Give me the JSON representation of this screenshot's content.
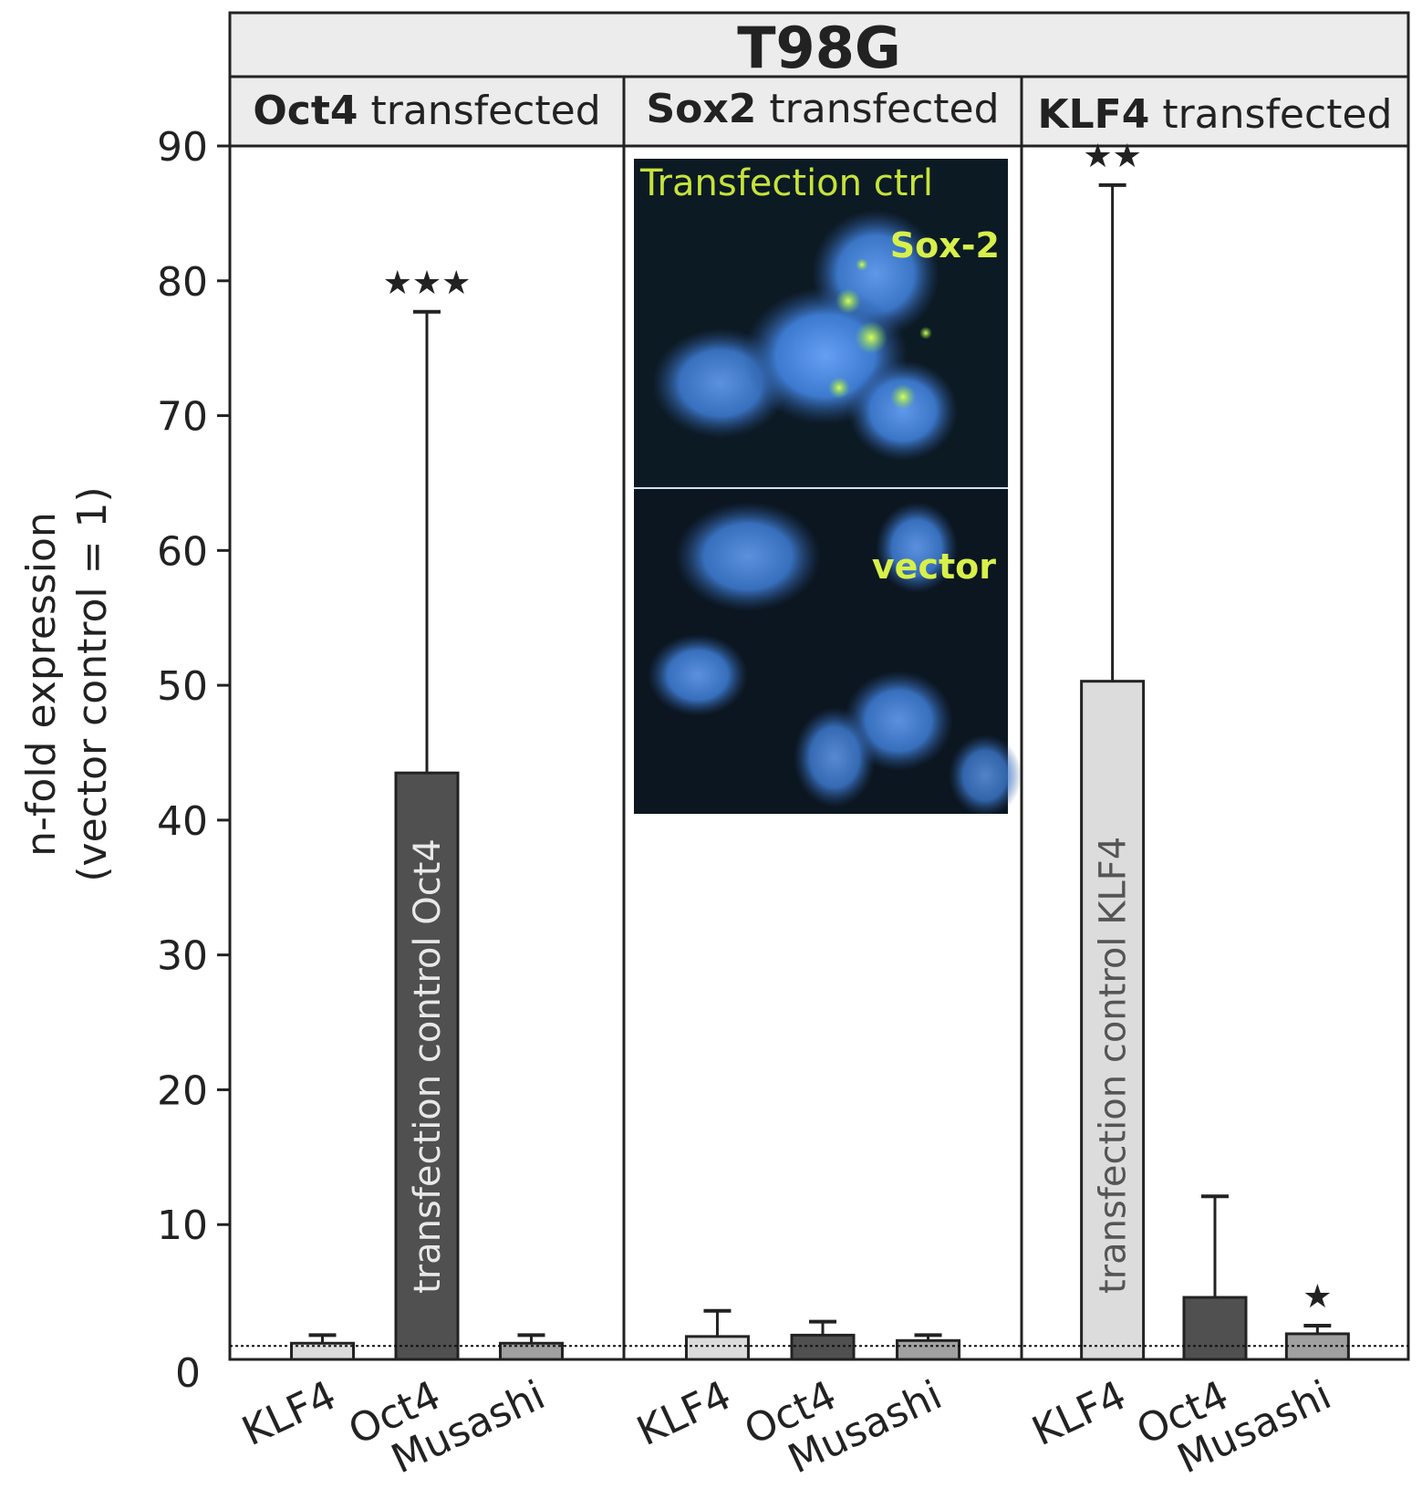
{
  "chart_data": {
    "type": "bar",
    "title": "T98G",
    "ylabel_line1": "n-fold expression",
    "ylabel_line2": "(vector control = 1)",
    "ylim": [
      0,
      90
    ],
    "yticks": [
      0,
      10,
      20,
      30,
      40,
      50,
      60,
      70,
      80,
      90
    ],
    "baseline": 1,
    "panels": [
      {
        "label_bold": "Oct4",
        "label_rest": " transfected",
        "bars": [
          {
            "category": "KLF4",
            "value": 1.2,
            "error": 0.6,
            "color": "#dcdcdc"
          },
          {
            "category": "Oct4",
            "value": 43.5,
            "error": 34.2,
            "color": "#505050",
            "annotation": "transfection control Oct4"
          },
          {
            "category": "Musashi",
            "value": 1.2,
            "error": 0.6,
            "color": "#a0a0a0"
          }
        ],
        "stars": [
          {
            "bar": 1,
            "text": "★★★"
          }
        ]
      },
      {
        "label_bold": "Sox2",
        "label_rest": " transfected",
        "bars": [
          {
            "category": "KLF4",
            "value": 1.7,
            "error": 1.9,
            "color": "#dcdcdc"
          },
          {
            "category": "Oct4",
            "value": 1.8,
            "error": 1.0,
            "color": "#505050"
          },
          {
            "category": "Musashi",
            "value": 1.4,
            "error": 0.4,
            "color": "#a0a0a0"
          }
        ],
        "stars": [],
        "inset": {
          "caption": "Transfection ctrl",
          "top_label": "Sox-2",
          "bottom_label": "vector"
        }
      },
      {
        "label_bold": "KLF4",
        "label_rest": " transfected",
        "bars": [
          {
            "category": "KLF4",
            "value": 50.3,
            "error": 36.8,
            "color": "#dcdcdc",
            "annotation": "transfection control KLF4"
          },
          {
            "category": "Oct4",
            "value": 4.6,
            "error": 7.5,
            "color": "#505050"
          },
          {
            "category": "Musashi",
            "value": 1.9,
            "error": 0.6,
            "color": "#a0a0a0"
          }
        ],
        "stars": [
          {
            "bar": 0,
            "text": "★★"
          },
          {
            "bar": 2,
            "text": "★"
          }
        ]
      }
    ]
  }
}
